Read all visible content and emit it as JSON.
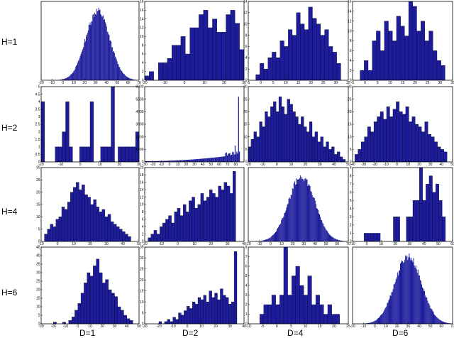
{
  "chart_data": {
    "type": "bar",
    "layout": "histogram-grid",
    "rows": [
      "H=1",
      "H=2",
      "H=4",
      "H=6"
    ],
    "cols": [
      "D=1",
      "D=2",
      "D=4",
      "D=6"
    ],
    "bar_color": "#1c1c9c",
    "panels": [
      {
        "name": "H=1 D=1",
        "kind": "gaussian",
        "xlim": [
          -20,
          70
        ],
        "ylim": [
          0,
          null
        ],
        "mu": 32,
        "sigma": 11,
        "peak": 0.88,
        "xticks": [
          -20,
          -10,
          0,
          10,
          20,
          30,
          40,
          50,
          60,
          70
        ],
        "yticks": []
      },
      {
        "name": "H=1 D=2",
        "kind": "bars",
        "xlim": [
          -20,
          30
        ],
        "ylim": [
          0,
          18
        ],
        "edges": [
          -20,
          30
        ],
        "values": [
          1,
          2,
          0,
          4,
          4,
          5,
          8,
          8,
          10,
          6,
          12,
          12,
          15,
          16,
          12,
          14,
          11,
          11,
          15,
          16,
          13,
          7
        ],
        "xticks": [
          -20,
          -10,
          0,
          10,
          20,
          30
        ],
        "yticks": [
          0,
          2,
          4,
          6,
          8,
          10,
          12,
          14,
          16,
          18
        ]
      },
      {
        "name": "H=1 D=4",
        "kind": "bars",
        "xlim": [
          -5,
          35
        ],
        "ylim": [
          0,
          14
        ],
        "edges": [
          -2,
          32
        ],
        "values": [
          1,
          3,
          2,
          4,
          5,
          4,
          7,
          6,
          9,
          8,
          12,
          10,
          9,
          13,
          11,
          10,
          8,
          9,
          6,
          5,
          3
        ],
        "xticks": [
          -5,
          0,
          5,
          10,
          15,
          20,
          25,
          30,
          35
        ],
        "yticks": [
          0,
          2,
          4,
          6,
          8,
          10,
          12,
          14
        ]
      },
      {
        "name": "H=1 D=6",
        "kind": "bars",
        "xlim": [
          -5,
          35
        ],
        "ylim": [
          0,
          16
        ],
        "edges": [
          -2,
          32
        ],
        "values": [
          2,
          4,
          2,
          8,
          10,
          6,
          12,
          10,
          8,
          13,
          11,
          9,
          16,
          15,
          10,
          12,
          8,
          10,
          6,
          4,
          3
        ],
        "xticks": [
          -5,
          0,
          5,
          10,
          15,
          20,
          25,
          30,
          35
        ],
        "yticks": [
          0,
          2,
          4,
          6,
          8,
          10,
          12,
          14,
          16
        ]
      },
      {
        "name": "H=2 D=1",
        "kind": "bars",
        "xlim": [
          -20,
          30
        ],
        "ylim": [
          0,
          5
        ],
        "edges": [
          -20,
          30
        ],
        "values": [
          4,
          0,
          0,
          0,
          1,
          1,
          2,
          4,
          1,
          0,
          0,
          1,
          1,
          1,
          4,
          0,
          0,
          1,
          1,
          1,
          5,
          0,
          1,
          1,
          1,
          1,
          1,
          2
        ],
        "xticks": [
          -20,
          -10,
          0,
          10,
          20,
          30
        ],
        "yticks": [
          0,
          0.5,
          1,
          1.5,
          2,
          2.5,
          3,
          3.5,
          4,
          4.5,
          5
        ]
      },
      {
        "name": "H=2 D=2",
        "kind": "spike",
        "xlim": [
          -30,
          90
        ],
        "ylim": [
          0,
          6000
        ],
        "edges": [
          -30,
          85
        ],
        "xticks": [
          -30,
          -20,
          -10,
          0,
          10,
          20,
          30,
          40,
          50,
          60,
          70,
          80
        ],
        "yticks": [
          0,
          1000,
          2000,
          3000,
          4000,
          5000,
          6000
        ]
      },
      {
        "name": "H=2 D=4",
        "kind": "bars",
        "xlim": [
          -20,
          50
        ],
        "ylim": [
          0,
          30
        ],
        "edges": [
          -20,
          48
        ],
        "values": [
          6,
          9,
          12,
          10,
          16,
          14,
          20,
          18,
          22,
          24,
          20,
          26,
          22,
          19,
          25,
          23,
          20,
          18,
          15,
          18,
          14,
          12,
          16,
          10,
          12,
          8,
          10,
          6,
          8,
          5,
          6,
          3,
          4,
          2,
          1
        ],
        "xticks": [
          -20,
          -10,
          0,
          10,
          20,
          30,
          40,
          50
        ],
        "yticks": [
          0,
          5,
          10,
          15,
          20,
          25,
          30
        ]
      },
      {
        "name": "H=2 D=6",
        "kind": "bars",
        "xlim": [
          -40,
          50
        ],
        "ylim": [
          0,
          30
        ],
        "edges": [
          -38,
          45
        ],
        "values": [
          3,
          5,
          8,
          10,
          14,
          12,
          16,
          18,
          20,
          17,
          22,
          18,
          21,
          24,
          20,
          19,
          22,
          16,
          18,
          15,
          14,
          12,
          16,
          11,
          10,
          8,
          6,
          5,
          4
        ],
        "xticks": [
          -40,
          -30,
          -20,
          -10,
          0,
          10,
          20,
          30,
          40,
          50
        ],
        "yticks": [
          0,
          5,
          10,
          15,
          20,
          25,
          30
        ]
      },
      {
        "name": "H=4 D=1",
        "kind": "bars",
        "xlim": [
          -10,
          50
        ],
        "ylim": [
          0,
          30
        ],
        "edges": [
          -8,
          45
        ],
        "values": [
          3,
          5,
          7,
          6,
          9,
          10,
          14,
          13,
          16,
          20,
          22,
          24,
          21,
          23,
          19,
          18,
          15,
          17,
          14,
          12,
          13,
          10,
          11,
          8,
          7,
          6,
          5,
          4,
          3,
          2
        ],
        "xticks": [
          -10,
          0,
          10,
          20,
          30,
          40,
          50
        ],
        "yticks": [
          0,
          5,
          10,
          15,
          20,
          25,
          30
        ]
      },
      {
        "name": "H=4 D=2",
        "kind": "bars",
        "xlim": [
          -20,
          40
        ],
        "ylim": [
          0,
          20
        ],
        "edges": [
          -18,
          35
        ],
        "values": [
          1,
          2,
          3,
          2,
          4,
          5,
          6,
          7,
          5,
          8,
          9,
          7,
          10,
          8,
          11,
          12,
          9,
          10,
          13,
          11,
          12,
          14,
          13,
          12,
          15,
          14,
          16,
          15,
          13,
          19
        ],
        "xticks": [
          -20,
          -10,
          0,
          10,
          20,
          30,
          40
        ],
        "yticks": [
          0,
          2,
          4,
          6,
          8,
          10,
          12,
          14,
          16,
          18,
          20
        ]
      },
      {
        "name": "H=4 D=4",
        "kind": "gaussian",
        "xlim": [
          -20,
          70
        ],
        "ylim": [
          0,
          null
        ],
        "mu": 28,
        "sigma": 12,
        "peak": 0.88,
        "xticks": [
          -20,
          -10,
          0,
          10,
          20,
          30,
          40,
          50,
          60,
          70
        ],
        "yticks": []
      },
      {
        "name": "H=4 D=6",
        "kind": "bars",
        "xlim": [
          -10,
          60
        ],
        "ylim": [
          0,
          9
        ],
        "edges": [
          -2,
          55
        ],
        "values": [
          1,
          1,
          1,
          1,
          1,
          0,
          0,
          0,
          0,
          3,
          3,
          0,
          0,
          3,
          3,
          5,
          5,
          9,
          5,
          7,
          8,
          6,
          7,
          5,
          3
        ],
        "xticks": [
          -10,
          0,
          10,
          20,
          30,
          40,
          50,
          60
        ],
        "yticks": [
          0,
          1,
          2,
          3,
          4,
          5,
          6,
          7,
          8,
          9
        ]
      },
      {
        "name": "H=6 D=1",
        "kind": "bars",
        "xlim": [
          -30,
          50
        ],
        "ylim": [
          0,
          45
        ],
        "edges": [
          -20,
          45
        ],
        "values": [
          1,
          0,
          0,
          1,
          0,
          2,
          4,
          8,
          12,
          18,
          24,
          30,
          28,
          34,
          38,
          30,
          24,
          26,
          20,
          18,
          16,
          10,
          8,
          5,
          3,
          2
        ],
        "xticks": [
          -30,
          -20,
          -10,
          0,
          10,
          20,
          30,
          40,
          50
        ],
        "yticks": [
          0,
          5,
          10,
          15,
          20,
          25,
          30,
          35,
          40,
          45
        ]
      },
      {
        "name": "H=6 D=2",
        "kind": "bars",
        "xlim": [
          -30,
          40
        ],
        "ylim": [
          0,
          35
        ],
        "edges": [
          -20,
          35
        ],
        "values": [
          1,
          0,
          1,
          2,
          1,
          3,
          2,
          5,
          4,
          6,
          8,
          7,
          10,
          9,
          12,
          11,
          13,
          10,
          15,
          12,
          14,
          11,
          16,
          13,
          12,
          9,
          10,
          33
        ],
        "xticks": [
          -30,
          -20,
          -10,
          0,
          10,
          20,
          30,
          40
        ],
        "yticks": [
          0,
          5,
          10,
          15,
          20,
          25,
          30,
          35
        ]
      },
      {
        "name": "H=6 D=4",
        "kind": "bars",
        "xlim": [
          -10,
          25
        ],
        "ylim": [
          0,
          8
        ],
        "edges": [
          -6,
          22
        ],
        "values": [
          1,
          2,
          2,
          3,
          2,
          3,
          8,
          3,
          5,
          6,
          4,
          3,
          5,
          2,
          3,
          2,
          1,
          2,
          1,
          1
        ],
        "xticks": [
          -10,
          -5,
          0,
          5,
          10,
          15,
          20,
          25
        ],
        "yticks": [
          0,
          1,
          2,
          3,
          4,
          5,
          6,
          7,
          8
        ]
      },
      {
        "name": "H=6 D=6",
        "kind": "gaussian",
        "xlim": [
          -20,
          70
        ],
        "ylim": [
          0,
          null
        ],
        "mu": 30,
        "sigma": 12,
        "peak": 0.88,
        "xticks": [
          -20,
          -10,
          0,
          10,
          20,
          30,
          40,
          50,
          60,
          70
        ],
        "yticks": []
      }
    ]
  }
}
